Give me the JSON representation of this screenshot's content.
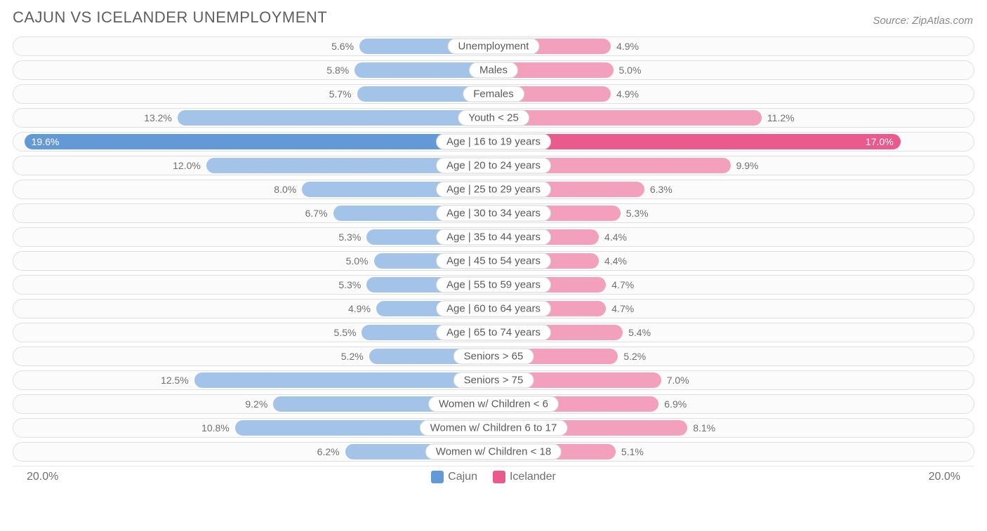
{
  "title": "CAJUN VS ICELANDER UNEMPLOYMENT",
  "source": "Source: ZipAtlas.com",
  "axis_max": 20.0,
  "axis_label": "20.0%",
  "colors": {
    "left_light": "#a3c3e8",
    "left_dark": "#6499d8",
    "right_light": "#f2a0bb",
    "right_dark": "#ea5a8c",
    "track_border": "#e0e0e0",
    "text": "#5a5a5a"
  },
  "legend": {
    "left": "Cajun",
    "right": "Icelander"
  },
  "rows": [
    {
      "label": "Unemployment",
      "l": 5.6,
      "r": 4.9,
      "ltxt": "5.6%",
      "rtxt": "4.9%",
      "dark": false
    },
    {
      "label": "Males",
      "l": 5.8,
      "r": 5.0,
      "ltxt": "5.8%",
      "rtxt": "5.0%",
      "dark": false
    },
    {
      "label": "Females",
      "l": 5.7,
      "r": 4.9,
      "ltxt": "5.7%",
      "rtxt": "4.9%",
      "dark": false
    },
    {
      "label": "Youth < 25",
      "l": 13.2,
      "r": 11.2,
      "ltxt": "13.2%",
      "rtxt": "11.2%",
      "dark": false
    },
    {
      "label": "Age | 16 to 19 years",
      "l": 19.6,
      "r": 17.0,
      "ltxt": "19.6%",
      "rtxt": "17.0%",
      "dark": true
    },
    {
      "label": "Age | 20 to 24 years",
      "l": 12.0,
      "r": 9.9,
      "ltxt": "12.0%",
      "rtxt": "9.9%",
      "dark": false
    },
    {
      "label": "Age | 25 to 29 years",
      "l": 8.0,
      "r": 6.3,
      "ltxt": "8.0%",
      "rtxt": "6.3%",
      "dark": false
    },
    {
      "label": "Age | 30 to 34 years",
      "l": 6.7,
      "r": 5.3,
      "ltxt": "6.7%",
      "rtxt": "5.3%",
      "dark": false
    },
    {
      "label": "Age | 35 to 44 years",
      "l": 5.3,
      "r": 4.4,
      "ltxt": "5.3%",
      "rtxt": "4.4%",
      "dark": false
    },
    {
      "label": "Age | 45 to 54 years",
      "l": 5.0,
      "r": 4.4,
      "ltxt": "5.0%",
      "rtxt": "4.4%",
      "dark": false
    },
    {
      "label": "Age | 55 to 59 years",
      "l": 5.3,
      "r": 4.7,
      "ltxt": "5.3%",
      "rtxt": "4.7%",
      "dark": false
    },
    {
      "label": "Age | 60 to 64 years",
      "l": 4.9,
      "r": 4.7,
      "ltxt": "4.9%",
      "rtxt": "4.7%",
      "dark": false
    },
    {
      "label": "Age | 65 to 74 years",
      "l": 5.5,
      "r": 5.4,
      "ltxt": "5.5%",
      "rtxt": "5.4%",
      "dark": false
    },
    {
      "label": "Seniors > 65",
      "l": 5.2,
      "r": 5.2,
      "ltxt": "5.2%",
      "rtxt": "5.2%",
      "dark": false
    },
    {
      "label": "Seniors > 75",
      "l": 12.5,
      "r": 7.0,
      "ltxt": "12.5%",
      "rtxt": "7.0%",
      "dark": false
    },
    {
      "label": "Women w/ Children < 6",
      "l": 9.2,
      "r": 6.9,
      "ltxt": "9.2%",
      "rtxt": "6.9%",
      "dark": false
    },
    {
      "label": "Women w/ Children 6 to 17",
      "l": 10.8,
      "r": 8.1,
      "ltxt": "10.8%",
      "rtxt": "8.1%",
      "dark": false
    },
    {
      "label": "Women w/ Children < 18",
      "l": 6.2,
      "r": 5.1,
      "ltxt": "6.2%",
      "rtxt": "5.1%",
      "dark": false
    }
  ]
}
